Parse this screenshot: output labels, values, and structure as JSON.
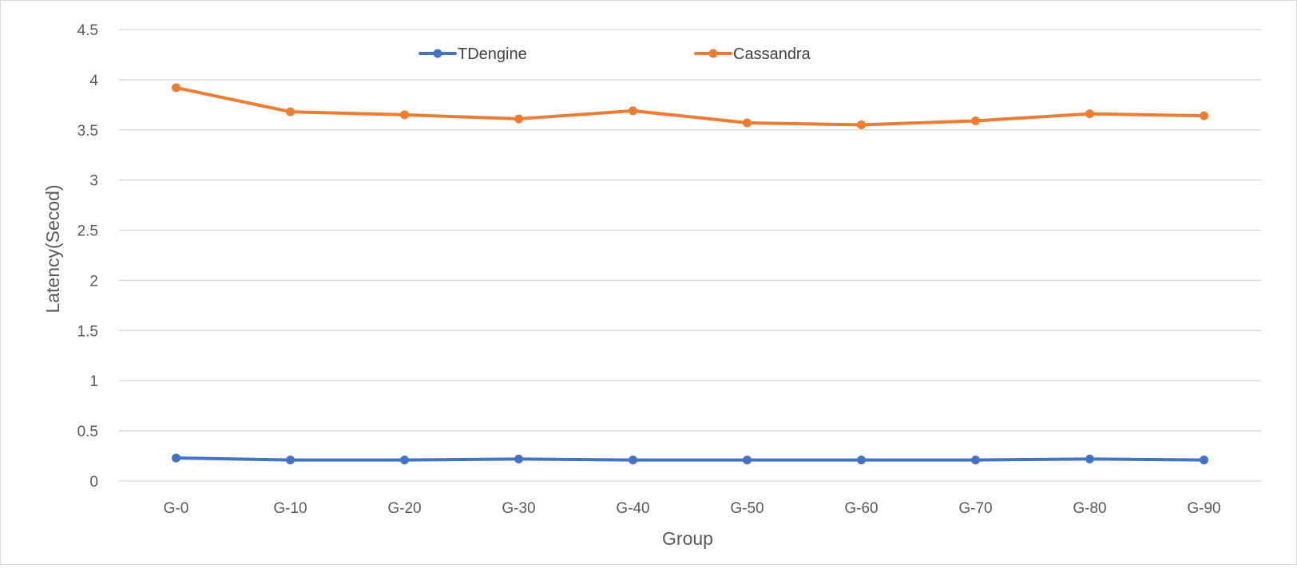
{
  "chart_data": {
    "type": "line",
    "title": "",
    "xlabel": "Group",
    "ylabel": "Latency(Secod)",
    "ylim": [
      0,
      4.5
    ],
    "yticks": [
      0,
      0.5,
      1,
      1.5,
      2,
      2.5,
      3,
      3.5,
      4,
      4.5
    ],
    "ytick_labels": [
      "0",
      "0.5",
      "1",
      "1.5",
      "2",
      "2.5",
      "3",
      "3.5",
      "4",
      "4.5"
    ],
    "grid": true,
    "legend_position": "top-center",
    "categories": [
      "G-0",
      "G-10",
      "G-20",
      "G-30",
      "G-40",
      "G-50",
      "G-60",
      "G-70",
      "G-80",
      "G-90"
    ],
    "series": [
      {
        "name": "TDengine",
        "color": "#4472c4",
        "values": [
          0.23,
          0.21,
          0.21,
          0.22,
          0.21,
          0.21,
          0.21,
          0.21,
          0.22,
          0.21
        ]
      },
      {
        "name": "Cassandra",
        "color": "#ed7d31",
        "values": [
          3.92,
          3.68,
          3.65,
          3.61,
          3.69,
          3.57,
          3.55,
          3.59,
          3.66,
          3.64
        ]
      }
    ]
  }
}
